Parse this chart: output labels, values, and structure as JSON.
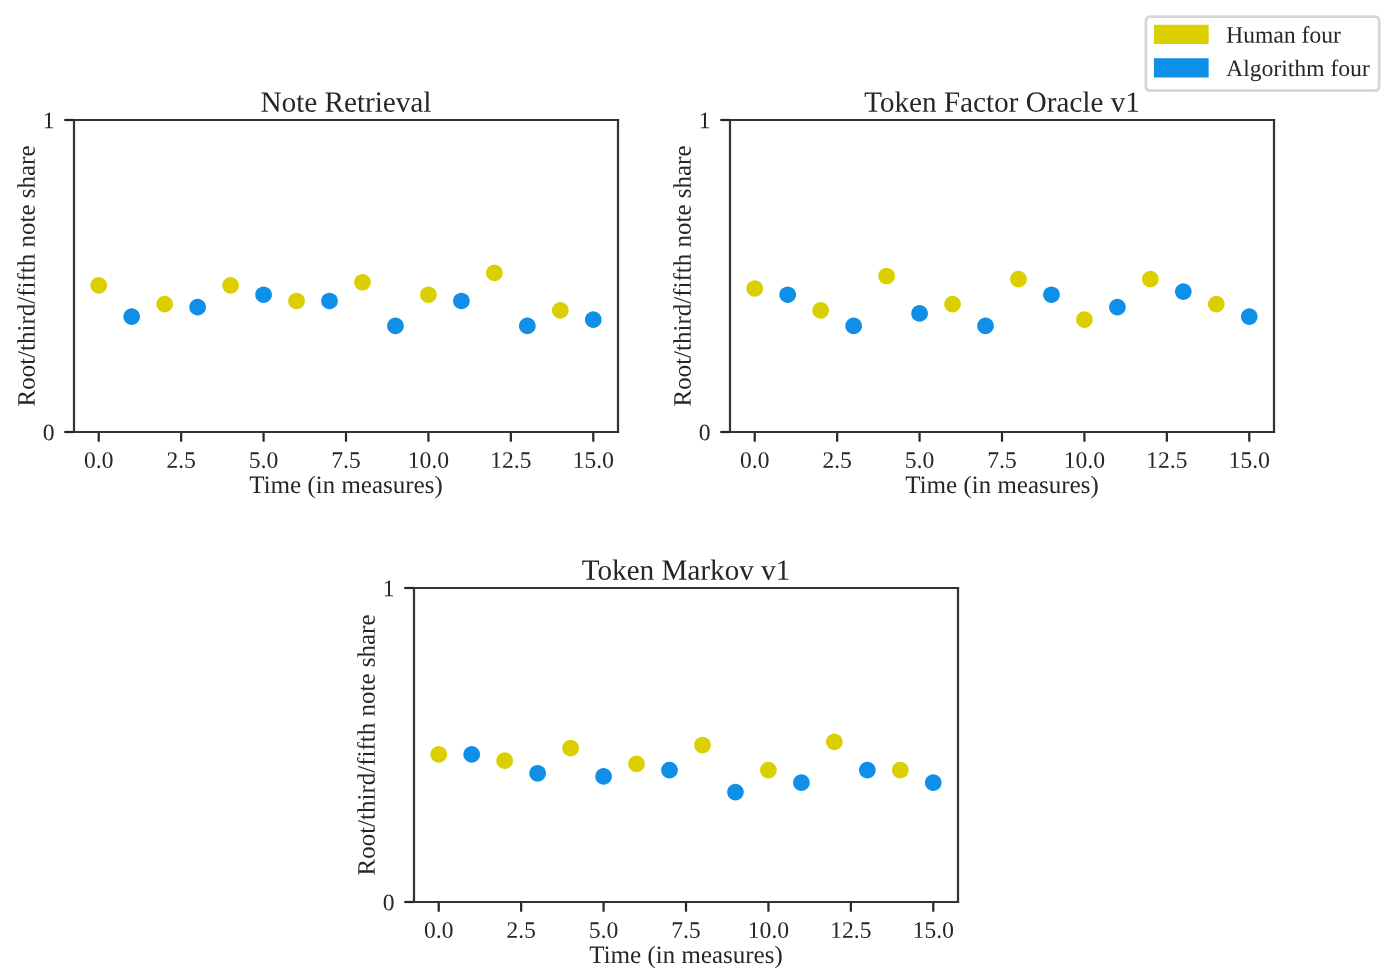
{
  "chart_data": [
    {
      "type": "scatter",
      "title": "Note Retrieval",
      "xlabel": "Time (in measures)",
      "ylabel": "Root/third/fifth note share",
      "series": [
        {
          "name": "Human four",
          "color": "#dccf00",
          "x": [
            0,
            2,
            4,
            6,
            8,
            10,
            12,
            14
          ],
          "values": [
            0.47,
            0.41,
            0.47,
            0.42,
            0.48,
            0.44,
            0.51,
            0.39
          ]
        },
        {
          "name": "Algorithm four",
          "color": "#0f8fe8",
          "x": [
            1,
            3,
            5,
            7,
            9,
            11,
            13,
            15
          ],
          "values": [
            0.37,
            0.4,
            0.44,
            0.42,
            0.34,
            0.42,
            0.34,
            0.36
          ]
        }
      ],
      "xlim": [
        -0.75,
        15.75
      ],
      "xticks": [
        {
          "value": 0,
          "label": "0.0"
        },
        {
          "value": 2.5,
          "label": "2.5"
        },
        {
          "value": 5,
          "label": "5.0"
        },
        {
          "value": 7.5,
          "label": "7.5"
        },
        {
          "value": 10,
          "label": "10.0"
        },
        {
          "value": 12.5,
          "label": "12.5"
        },
        {
          "value": 15,
          "label": "15.0"
        }
      ],
      "ylim": [
        0,
        1
      ],
      "yticks": [
        0,
        1
      ],
      "grid": false,
      "legend": "top right",
      "marker": "circle"
    },
    {
      "type": "scatter",
      "title": "Token Factor Oracle v1",
      "xlabel": "Time (in measures)",
      "ylabel": "Root/third/fifth note share",
      "series": [
        {
          "color": "#dccf00",
          "x": [
            0,
            2,
            4,
            6,
            8,
            10,
            12,
            14
          ],
          "values": [
            0.46,
            0.39,
            0.5,
            0.41,
            0.49,
            0.36,
            0.49,
            0.41
          ]
        },
        {
          "color": "#0f8fe8",
          "x": [
            1,
            3,
            5,
            7,
            9,
            11,
            13,
            15
          ],
          "values": [
            0.44,
            0.34,
            0.38,
            0.34,
            0.44,
            0.4,
            0.45,
            0.37
          ]
        }
      ],
      "xlim": [
        -0.75,
        15.75
      ],
      "xticks": [
        {
          "value": 0,
          "label": "0.0"
        },
        {
          "value": 2.5,
          "label": "2.5"
        },
        {
          "value": 5,
          "label": "5.0"
        },
        {
          "value": 7.5,
          "label": "7.5"
        },
        {
          "value": 10,
          "label": "10.0"
        },
        {
          "value": 12.5,
          "label": "12.5"
        },
        {
          "value": 15,
          "label": "15.0"
        }
      ],
      "ylim": [
        0,
        1
      ],
      "yticks": [
        0,
        1
      ],
      "grid": false,
      "marker": "circle"
    },
    {
      "type": "scatter",
      "title": "Token Markov v1",
      "xlabel": "Time (in measures)",
      "ylabel": "Root/third/fifth note share",
      "series": [
        {
          "color": "#dccf00",
          "x": [
            0,
            2,
            4,
            6,
            8,
            10,
            12,
            14
          ],
          "values": [
            0.47,
            0.45,
            0.49,
            0.44,
            0.5,
            0.42,
            0.51,
            0.42
          ]
        },
        {
          "color": "#0f8fe8",
          "x": [
            1,
            3,
            5,
            7,
            9,
            11,
            13,
            15
          ],
          "values": [
            0.47,
            0.41,
            0.4,
            0.42,
            0.35,
            0.38,
            0.42,
            0.38
          ]
        }
      ],
      "xlim": [
        -0.75,
        15.75
      ],
      "xticks": [
        {
          "value": 0,
          "label": "0.0"
        },
        {
          "value": 2.5,
          "label": "2.5"
        },
        {
          "value": 5,
          "label": "5.0"
        },
        {
          "value": 7.5,
          "label": "7.5"
        },
        {
          "value": 10,
          "label": "10.0"
        },
        {
          "value": 12.5,
          "label": "12.5"
        },
        {
          "value": 15,
          "label": "15.0"
        }
      ],
      "ylim": [
        0,
        1
      ],
      "yticks": [
        0,
        1
      ],
      "grid": false,
      "marker": "circle"
    }
  ]
}
